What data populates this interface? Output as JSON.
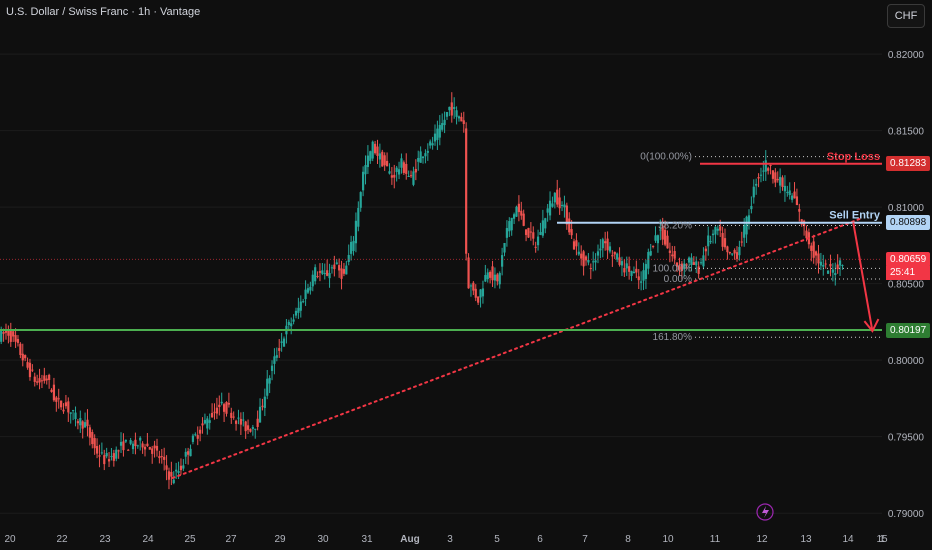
{
  "header": {
    "title": "U.S. Dollar / Swiss Franc · 1h · Vantage"
  },
  "toolbar": {
    "currency_label": "CHF"
  },
  "chart_data": {
    "type": "candlestick",
    "symbol": "USDCHF",
    "timeframe": "1h",
    "ylim": [
      0.789,
      0.8235
    ],
    "y_ticks": [
      "0.82000",
      "0.81500",
      "0.81000",
      "0.80500",
      "0.80000",
      "0.79500",
      "0.79000"
    ],
    "x_ticks": [
      "20",
      "22",
      "23",
      "24",
      "25",
      "27",
      "29",
      "30",
      "31",
      "Aug",
      "3",
      "5",
      "6",
      "7",
      "8",
      "10",
      "11",
      "12",
      "13",
      "14",
      "15",
      "1"
    ],
    "price_path": [
      [
        0,
        0.8016
      ],
      [
        2,
        0.8018
      ],
      [
        4,
        0.8008
      ],
      [
        6,
        0.7995
      ],
      [
        8,
        0.7985
      ],
      [
        10,
        0.7988
      ],
      [
        12,
        0.7972
      ],
      [
        14,
        0.797
      ],
      [
        16,
        0.7962
      ],
      [
        18,
        0.7958
      ],
      [
        20,
        0.7942
      ],
      [
        22,
        0.7935
      ],
      [
        24,
        0.7938
      ],
      [
        26,
        0.7945
      ],
      [
        28,
        0.7944
      ],
      [
        30,
        0.7946
      ],
      [
        32,
        0.7942
      ],
      [
        34,
        0.7935
      ],
      [
        36,
        0.7922
      ],
      [
        38,
        0.793
      ],
      [
        40,
        0.7945
      ],
      [
        42,
        0.7955
      ],
      [
        44,
        0.7963
      ],
      [
        46,
        0.797
      ],
      [
        48,
        0.7968
      ],
      [
        50,
        0.796
      ],
      [
        52,
        0.7955
      ],
      [
        54,
        0.796
      ],
      [
        56,
        0.7985
      ],
      [
        58,
        0.8005
      ],
      [
        60,
        0.802
      ],
      [
        62,
        0.803
      ],
      [
        64,
        0.8045
      ],
      [
        66,
        0.8058
      ],
      [
        68,
        0.8055
      ],
      [
        70,
        0.8062
      ],
      [
        72,
        0.8055
      ],
      [
        74,
        0.808
      ],
      [
        76,
        0.8122
      ],
      [
        78,
        0.814
      ],
      [
        80,
        0.813
      ],
      [
        82,
        0.812
      ],
      [
        84,
        0.8128
      ],
      [
        86,
        0.8118
      ],
      [
        88,
        0.8135
      ],
      [
        90,
        0.814
      ],
      [
        92,
        0.815
      ],
      [
        94,
        0.8165
      ],
      [
        96,
        0.816
      ],
      [
        97,
        0.8155
      ],
      [
        97.5,
        0.807
      ],
      [
        98,
        0.805
      ],
      [
        100,
        0.804
      ],
      [
        102,
        0.806
      ],
      [
        104,
        0.805
      ],
      [
        106,
        0.8085
      ],
      [
        108,
        0.81
      ],
      [
        110,
        0.8085
      ],
      [
        112,
        0.8075
      ],
      [
        114,
        0.8095
      ],
      [
        116,
        0.8108
      ],
      [
        118,
        0.8098
      ],
      [
        120,
        0.8075
      ],
      [
        122,
        0.8065
      ],
      [
        124,
        0.8062
      ],
      [
        126,
        0.808
      ],
      [
        128,
        0.807
      ],
      [
        130,
        0.8062
      ],
      [
        132,
        0.8058
      ],
      [
        134,
        0.805
      ],
      [
        136,
        0.8075
      ],
      [
        138,
        0.8085
      ],
      [
        140,
        0.807
      ],
      [
        142,
        0.806
      ],
      [
        144,
        0.8065
      ],
      [
        146,
        0.806
      ],
      [
        148,
        0.8078
      ],
      [
        150,
        0.8085
      ],
      [
        152,
        0.8068
      ],
      [
        154,
        0.807
      ],
      [
        156,
        0.809
      ],
      [
        158,
        0.8118
      ],
      [
        160,
        0.8128
      ],
      [
        162,
        0.812
      ],
      [
        164,
        0.8112
      ],
      [
        166,
        0.8105
      ],
      [
        168,
        0.8085
      ],
      [
        170,
        0.807
      ],
      [
        172,
        0.806
      ],
      [
        174,
        0.8058
      ],
      [
        176,
        0.8066
      ]
    ],
    "levels": [
      {
        "label": "Stop Loss",
        "price": "0.81283",
        "value": 0.81283,
        "color": "#f23645"
      },
      {
        "label": "Sell Entry",
        "price": "0.80898",
        "value": 0.80898,
        "color": "#b2d4f5"
      },
      {
        "label": "",
        "price": "0.80197",
        "value": 0.80197,
        "color": "#4caf50"
      }
    ],
    "last_price": {
      "price": "0.80659",
      "value": 0.80659,
      "countdown": "25:41",
      "color": "#f23645"
    },
    "fib_levels": [
      {
        "label": "0(100.00%)",
        "value": 0.8133
      },
      {
        "label": "38.20%",
        "value": 0.8088
      },
      {
        "label": "100.00%",
        "value": 0.806
      },
      {
        "label": "0.00%",
        "value": 0.8053
      },
      {
        "label": "161.80%",
        "value": 0.8015
      }
    ],
    "trendline": {
      "from": [
        36,
        0.7923
      ],
      "to": [
        180,
        0.8093
      ],
      "color": "#f23645",
      "style": "dotted"
    },
    "projection_arrow": {
      "from": [
        178,
        0.809
      ],
      "to": [
        182,
        0.8019
      ],
      "color": "#f23645"
    },
    "colors": {
      "up": "#26a69a",
      "down": "#ef5350",
      "background": "#0f0f0f"
    }
  }
}
